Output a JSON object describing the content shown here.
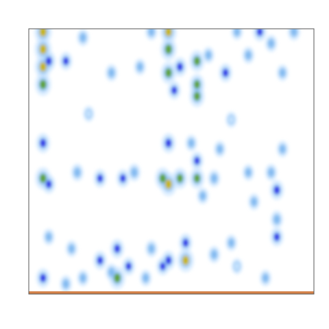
{
  "chart_data": {
    "type": "heatmap",
    "title": "",
    "xlabel": "",
    "ylabel": "",
    "axes_visible": false,
    "grid": false,
    "legend": "none",
    "colormap": [
      "#ffffff",
      "#c6e4ff",
      "#7fb8f0",
      "#2a2ee6",
      "#5aa02c",
      "#c8b400"
    ],
    "baseline_color": "#d4824a",
    "n_cols": 50,
    "n_rows": 45,
    "hotspots": [
      {
        "col": 2,
        "row": 0,
        "value": 1.0
      },
      {
        "col": 2,
        "row": 3,
        "value": 0.95
      },
      {
        "col": 2,
        "row": 6,
        "value": 0.9
      },
      {
        "col": 2,
        "row": 9,
        "value": 0.85
      },
      {
        "col": 3,
        "row": 5,
        "value": 0.6
      },
      {
        "col": 2,
        "row": 19,
        "value": 0.6
      },
      {
        "col": 2,
        "row": 25,
        "value": 0.8
      },
      {
        "col": 3,
        "row": 26,
        "value": 0.5
      },
      {
        "col": 2,
        "row": 42,
        "value": 0.55
      },
      {
        "col": 6,
        "row": 5,
        "value": 0.45
      },
      {
        "col": 9,
        "row": 1,
        "value": 0.35
      },
      {
        "col": 14,
        "row": 7,
        "value": 0.35
      },
      {
        "col": 21,
        "row": 0,
        "value": 0.35
      },
      {
        "col": 19,
        "row": 6,
        "value": 0.3
      },
      {
        "col": 24,
        "row": 0,
        "value": 0.9
      },
      {
        "col": 24,
        "row": 3,
        "value": 0.85
      },
      {
        "col": 24,
        "row": 7,
        "value": 0.8
      },
      {
        "col": 25,
        "row": 10,
        "value": 0.45
      },
      {
        "col": 26,
        "row": 6,
        "value": 0.55
      },
      {
        "col": 24,
        "row": 19,
        "value": 0.6
      },
      {
        "col": 23,
        "row": 25,
        "value": 0.75
      },
      {
        "col": 24,
        "row": 26,
        "value": 0.95
      },
      {
        "col": 26,
        "row": 25,
        "value": 0.7
      },
      {
        "col": 23,
        "row": 40,
        "value": 0.45
      },
      {
        "col": 29,
        "row": 5,
        "value": 0.75
      },
      {
        "col": 29,
        "row": 9,
        "value": 0.7
      },
      {
        "col": 29,
        "row": 11,
        "value": 0.75
      },
      {
        "col": 29,
        "row": 25,
        "value": 0.7
      },
      {
        "col": 29,
        "row": 22,
        "value": 0.45
      },
      {
        "col": 34,
        "row": 7,
        "value": 0.5
      },
      {
        "col": 31,
        "row": 4,
        "value": 0.3
      },
      {
        "col": 38,
        "row": 4,
        "value": 0.35
      },
      {
        "col": 40,
        "row": 0,
        "value": 0.55
      },
      {
        "col": 36,
        "row": 0,
        "value": 0.3
      },
      {
        "col": 42,
        "row": 2,
        "value": 0.35
      },
      {
        "col": 46,
        "row": 0,
        "value": 0.4
      },
      {
        "col": 44,
        "row": 7,
        "value": 0.3
      },
      {
        "col": 8,
        "row": 24,
        "value": 0.4
      },
      {
        "col": 12,
        "row": 25,
        "value": 0.45
      },
      {
        "col": 16,
        "row": 25,
        "value": 0.45
      },
      {
        "col": 18,
        "row": 24,
        "value": 0.4
      },
      {
        "col": 32,
        "row": 25,
        "value": 0.35
      },
      {
        "col": 38,
        "row": 24,
        "value": 0.3
      },
      {
        "col": 43,
        "row": 27,
        "value": 0.6
      },
      {
        "col": 42,
        "row": 24,
        "value": 0.35
      },
      {
        "col": 39,
        "row": 29,
        "value": 0.3
      },
      {
        "col": 44,
        "row": 20,
        "value": 0.3
      },
      {
        "col": 43,
        "row": 32,
        "value": 0.4
      },
      {
        "col": 43,
        "row": 35,
        "value": 0.5
      },
      {
        "col": 12,
        "row": 39,
        "value": 0.5
      },
      {
        "col": 14,
        "row": 41,
        "value": 0.35
      },
      {
        "col": 15,
        "row": 37,
        "value": 0.55
      },
      {
        "col": 17,
        "row": 40,
        "value": 0.45
      },
      {
        "col": 15,
        "row": 42,
        "value": 0.85
      },
      {
        "col": 21,
        "row": 37,
        "value": 0.35
      },
      {
        "col": 24,
        "row": 39,
        "value": 0.55
      },
      {
        "col": 27,
        "row": 39,
        "value": 0.9
      },
      {
        "col": 27,
        "row": 36,
        "value": 0.5
      },
      {
        "col": 32,
        "row": 38,
        "value": 0.35
      },
      {
        "col": 35,
        "row": 36,
        "value": 0.3
      },
      {
        "col": 6,
        "row": 43,
        "value": 0.35
      },
      {
        "col": 9,
        "row": 42,
        "value": 0.3
      },
      {
        "col": 3,
        "row": 35,
        "value": 0.3
      },
      {
        "col": 7,
        "row": 37,
        "value": 0.3
      },
      {
        "col": 41,
        "row": 42,
        "value": 0.3
      },
      {
        "col": 36,
        "row": 40,
        "value": 0.25
      },
      {
        "col": 20,
        "row": 42,
        "value": 0.3
      },
      {
        "col": 30,
        "row": 28,
        "value": 0.3
      },
      {
        "col": 10,
        "row": 14,
        "value": 0.25
      },
      {
        "col": 35,
        "row": 15,
        "value": 0.25
      },
      {
        "col": 28,
        "row": 19,
        "value": 0.3
      },
      {
        "col": 33,
        "row": 20,
        "value": 0.3
      }
    ]
  }
}
